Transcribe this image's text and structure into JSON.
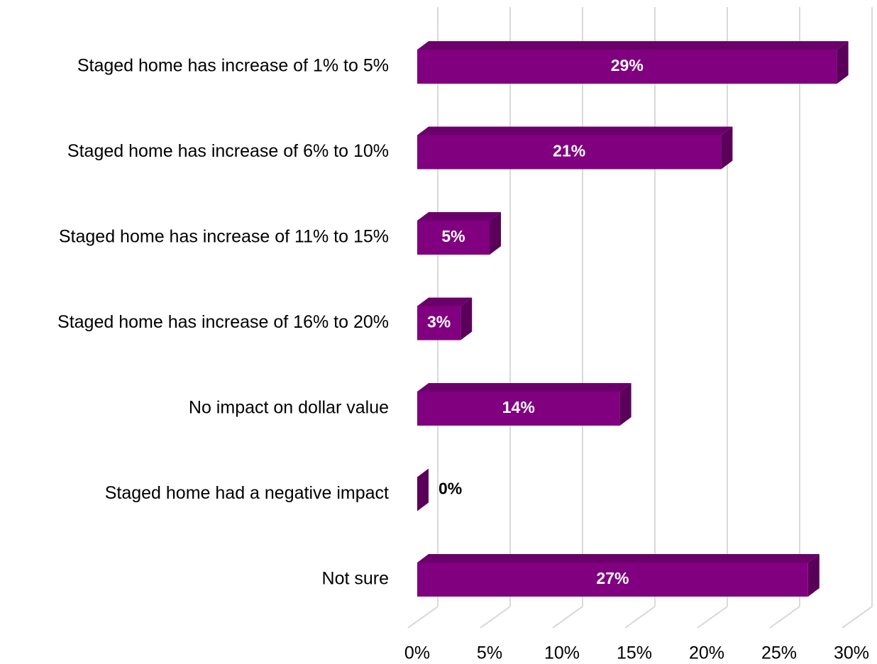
{
  "chart_data": {
    "type": "bar3d_horizontal",
    "categories": [
      "Staged home has increase of 1% to 5%",
      "Staged home has increase of 6% to 10%",
      "Staged home has increase of 11% to 15%",
      "Staged home has increase of 16% to 20%",
      "No impact on dollar value",
      "Staged home had a negative impact",
      "Not sure"
    ],
    "values": [
      29,
      21,
      5,
      3,
      14,
      0,
      27
    ],
    "value_labels": [
      "29%",
      "21%",
      "5%",
      "3%",
      "14%",
      "0%",
      "27%"
    ],
    "color": "#800080",
    "xlim": [
      0,
      30
    ],
    "xticks": [
      {
        "value": 0,
        "label": "0%"
      },
      {
        "value": 5,
        "label": "5%"
      },
      {
        "value": 10,
        "label": "10%"
      },
      {
        "value": 15,
        "label": "15%"
      },
      {
        "value": 20,
        "label": "20%"
      },
      {
        "value": 25,
        "label": "25%"
      },
      {
        "value": 30,
        "label": "30%"
      }
    ],
    "grid": true
  }
}
